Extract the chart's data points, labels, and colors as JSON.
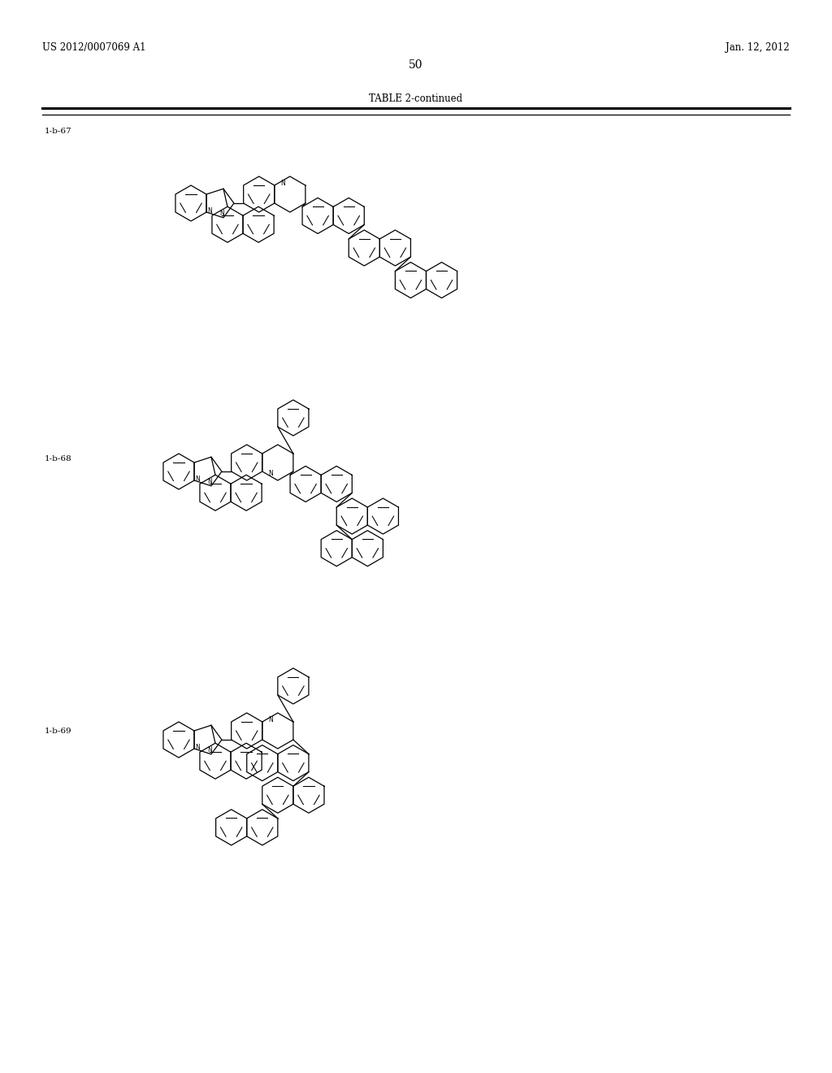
{
  "page_header_left": "US 2012/0007069 A1",
  "page_header_right": "Jan. 12, 2012",
  "page_number": "50",
  "table_title": "TABLE 2-continued",
  "compound_labels": [
    "1-b-67",
    "1-b-68",
    "1-b-69"
  ],
  "figsize": [
    10.24,
    13.2
  ],
  "dpi": 100
}
